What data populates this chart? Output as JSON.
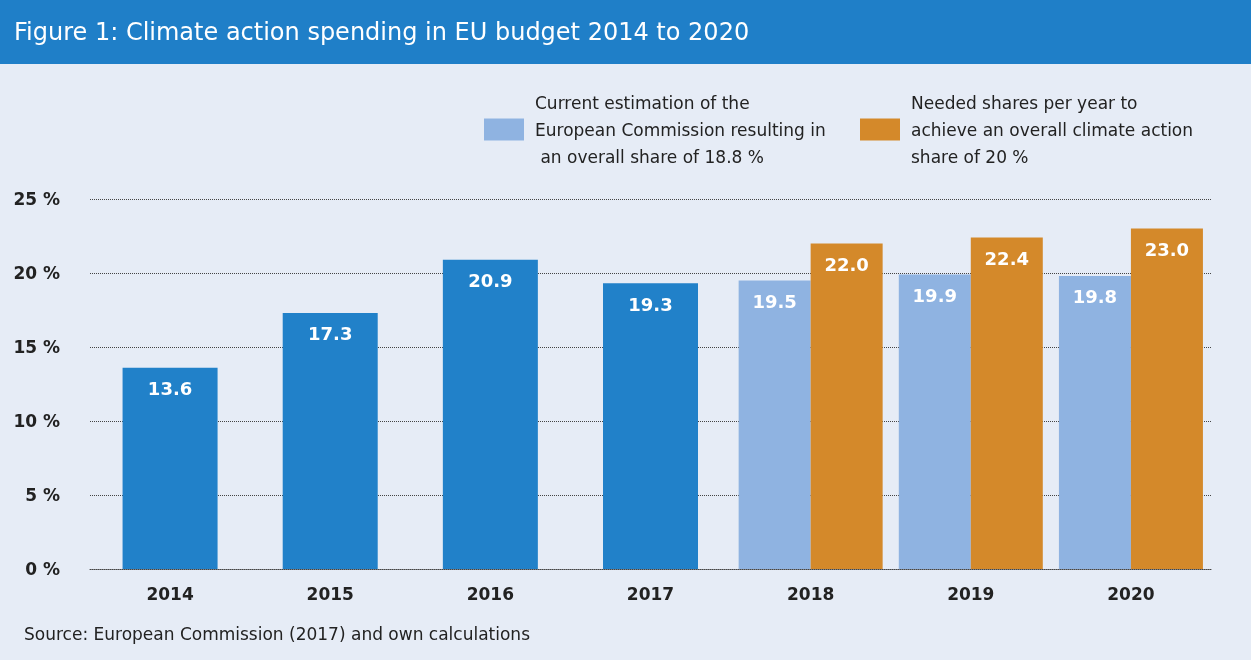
{
  "chart_data": {
    "type": "bar",
    "title": "Figure 1: Climate action spending in EU budget 2014 to 2020",
    "categories": [
      "2014",
      "2015",
      "2016",
      "2017",
      "2018",
      "2019",
      "2020"
    ],
    "series": [
      {
        "color": "#2181c9",
        "values": [
          13.6,
          17.3,
          20.9,
          19.3,
          null,
          null,
          null
        ],
        "value_labels": [
          "13.6",
          "17.3",
          "20.9",
          "19.3",
          null,
          null,
          null
        ]
      },
      {
        "name": "Current estimation of the European Commission resulting in an overall share of 18.8 %",
        "color": "#8fb3e1",
        "values": [
          null,
          null,
          null,
          null,
          19.5,
          19.9,
          19.8
        ],
        "value_labels": [
          null,
          null,
          null,
          null,
          "19.5",
          "19.9",
          "19.8"
        ]
      },
      {
        "name": "Needed shares per year to achieve an overall climate action share of 20 %",
        "color": "#d4892a",
        "values": [
          null,
          null,
          null,
          null,
          22.0,
          22.4,
          23.0
        ],
        "value_labels": [
          null,
          null,
          null,
          null,
          "22.0",
          "22.4",
          "23.0"
        ]
      }
    ],
    "ylim": [
      0,
      25
    ],
    "yticks": [
      {
        "value": 0,
        "label": "0 %"
      },
      {
        "value": 5,
        "label": "5 %"
      },
      {
        "value": 10,
        "label": "10 %"
      },
      {
        "value": 15,
        "label": "15 %"
      },
      {
        "value": 20,
        "label": "20 %"
      },
      {
        "value": 25,
        "label": "25 %"
      }
    ],
    "grid": "y",
    "legend": "top right",
    "annotations": [
      "Source:   European Commission (2017) and own calculations"
    ]
  }
}
